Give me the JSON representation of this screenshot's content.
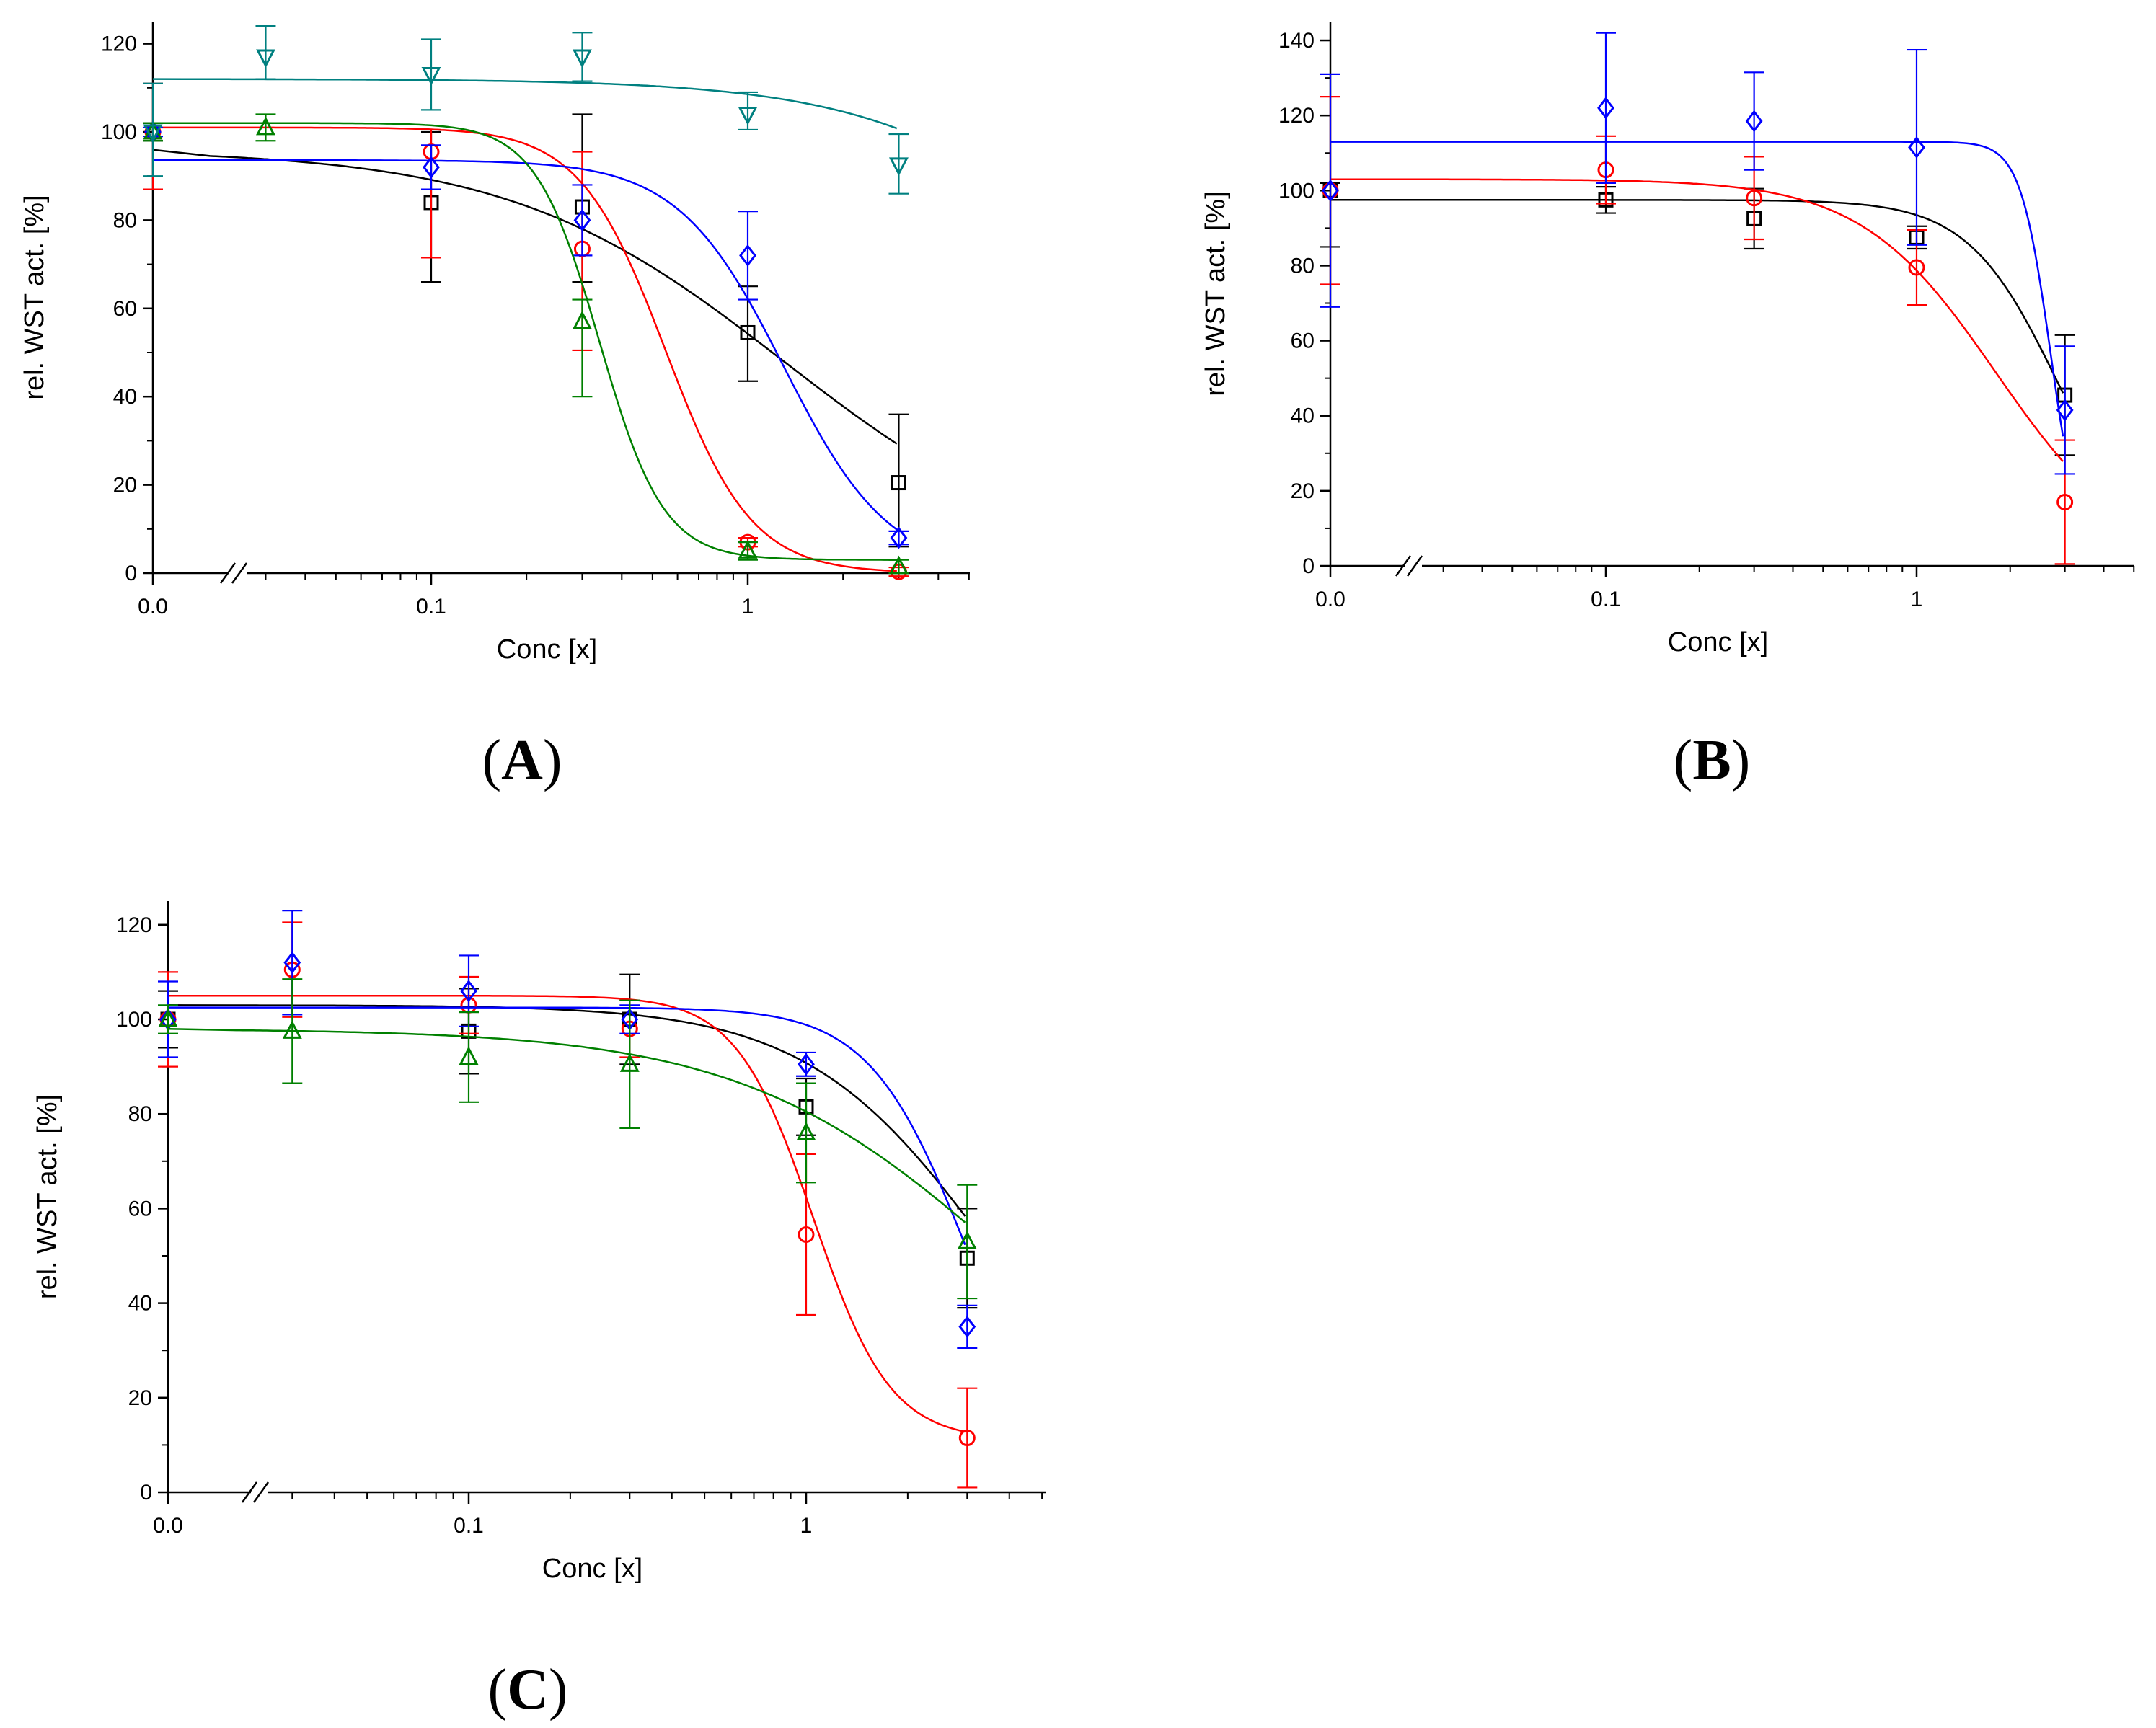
{
  "figure": {
    "panel_labels": [
      {
        "open": "(",
        "letter": "A",
        "close": ")"
      },
      {
        "open": "(",
        "letter": "B",
        "close": ")"
      },
      {
        "open": "(",
        "letter": "C",
        "close": ")"
      }
    ]
  },
  "chart_data": [
    {
      "panel": "A",
      "type": "scatter",
      "xscale": "log with axis break; zero control plotted at 0.0",
      "xlabel": "Conc [x]",
      "ylabel": "rel. WST act. [%]",
      "xlim": [
        0.012,
        5
      ],
      "ylim": [
        0,
        125
      ],
      "xtick_labels": [
        "0.0",
        "0.1",
        "1"
      ],
      "yticks": [
        0,
        20,
        40,
        60,
        80,
        100,
        120
      ],
      "series": [
        {
          "name": "black-square",
          "color": "#000000",
          "marker": "square",
          "x": [
            0.0,
            0.1,
            0.3,
            1.0,
            3.0
          ],
          "values": [
            100,
            84,
            83,
            54.5,
            20.5
          ],
          "err_hi": [
            2,
            16,
            21,
            10.5,
            15.5
          ],
          "err_lo": [
            2,
            18,
            17,
            11,
            14.5
          ],
          "fit": {
            "top": 96,
            "bottom": 0,
            "ec50": 1.3,
            "hill": 1.0
          }
        },
        {
          "name": "red-circle",
          "color": "#ff0000",
          "marker": "circle",
          "x": [
            0.0,
            0.1,
            0.3,
            1.0,
            3.0
          ],
          "values": [
            100,
            95.5,
            73.5,
            7,
            0.3
          ],
          "err_hi": [
            11,
            5,
            22,
            1,
            1
          ],
          "err_lo": [
            13,
            24,
            23,
            1,
            1
          ],
          "fit": {
            "top": 101,
            "bottom": 0,
            "ec50": 0.55,
            "hill": 3.2
          }
        },
        {
          "name": "blue-diamond",
          "color": "#0000ff",
          "marker": "diamond",
          "x": [
            0.0,
            0.1,
            0.3,
            1.0,
            3.0
          ],
          "values": [
            100,
            92,
            80,
            72,
            8
          ],
          "err_hi": [
            1,
            5,
            8,
            10,
            1.5
          ],
          "err_lo": [
            1,
            5,
            8,
            10,
            1.5
          ],
          "fit": {
            "top": 93.6,
            "bottom": 0,
            "ec50": 1.3,
            "hill": 2.6
          }
        },
        {
          "name": "green-triangle-up",
          "color": "#008000",
          "marker": "triangle-up",
          "x": [
            0.0,
            0.03,
            0.3,
            1.0,
            3.0
          ],
          "values": [
            100,
            101,
            57,
            5,
            1.5
          ],
          "err_hi": [
            2,
            3,
            5,
            2,
            1.5
          ],
          "err_lo": [
            2,
            3,
            17,
            2,
            1.5
          ],
          "fit": {
            "top": 102,
            "bottom": 3,
            "ec50": 0.34,
            "hill": 4.3
          }
        },
        {
          "name": "teal-triangle-down",
          "color": "#008080",
          "marker": "triangle-down",
          "x": [
            0.0,
            0.03,
            0.1,
            0.3,
            1.0,
            3.0
          ],
          "values": [
            100,
            117,
            113,
            117,
            104,
            92.5
          ],
          "err_hi": [
            11,
            7,
            8,
            5.5,
            5,
            7
          ],
          "err_lo": [
            10,
            5,
            8,
            5.5,
            3.5,
            6.5
          ],
          "fit": {
            "top": 112,
            "bottom": 0,
            "ec50": 20,
            "hill": 1.15
          }
        }
      ]
    },
    {
      "panel": "B",
      "type": "scatter",
      "xscale": "log with axis break; zero control plotted at 0.0",
      "xlabel": "Conc [x]",
      "ylabel": "rel. WST act. [%]",
      "xlim": [
        0.012,
        5
      ],
      "ylim": [
        0,
        145
      ],
      "xtick_labels": [
        "0.0",
        "0.1",
        "1"
      ],
      "yticks": [
        0,
        20,
        40,
        60,
        80,
        100,
        120,
        140
      ],
      "series": [
        {
          "name": "black-square",
          "color": "#000000",
          "marker": "square",
          "x": [
            0.0,
            0.1,
            0.3,
            1.0,
            3.0
          ],
          "values": [
            100,
            97.5,
            92.5,
            87.5,
            45.5
          ],
          "err_hi": [
            2,
            3.5,
            8,
            3,
            16
          ],
          "err_lo": [
            15,
            3.5,
            8,
            3,
            16
          ],
          "fit": {
            "top": 97.5,
            "bottom": 0,
            "ec50": 2.85,
            "hill": 3.0
          }
        },
        {
          "name": "red-circle",
          "color": "#ff0000",
          "marker": "circle",
          "x": [
            0.0,
            0.1,
            0.3,
            1.0,
            3.0
          ],
          "values": [
            100,
            105.5,
            98,
            79.5,
            17
          ],
          "err_hi": [
            25,
            9,
            11,
            10,
            16.5
          ],
          "err_lo": [
            25,
            9,
            11,
            10,
            16.5
          ],
          "fit": {
            "top": 103,
            "bottom": 0,
            "ec50": 1.8,
            "hill": 2.0
          }
        },
        {
          "name": "blue-diamond",
          "color": "#0000ff",
          "marker": "diamond",
          "x": [
            0.0,
            0.1,
            0.3,
            1.0,
            3.0
          ],
          "values": [
            100,
            122,
            118.5,
            111.5,
            41.5
          ],
          "err_hi": [
            31,
            20,
            13,
            26,
            17
          ],
          "err_lo": [
            31,
            20,
            13,
            26,
            17
          ],
          "fit": {
            "top": 113,
            "bottom": 0,
            "ec50": 2.7,
            "hill": 9.0
          }
        }
      ]
    },
    {
      "panel": "C",
      "type": "scatter",
      "xscale": "log with axis break; zero control plotted at 0.0",
      "xlabel": "Conc [x]",
      "ylabel": "rel. WST act. [%]",
      "xlim": [
        0.012,
        5
      ],
      "ylim": [
        0,
        125
      ],
      "xtick_labels": [
        "0.0",
        "0.1",
        "1"
      ],
      "yticks": [
        0,
        20,
        40,
        60,
        80,
        100,
        120
      ],
      "series": [
        {
          "name": "black-square",
          "color": "#000000",
          "marker": "square",
          "x": [
            0.0,
            0.1,
            0.3,
            1.0,
            3.0
          ],
          "values": [
            100,
            97.5,
            100,
            81.5,
            49.5
          ],
          "err_hi": [
            6,
            9,
            9.5,
            6,
            10.5
          ],
          "err_lo": [
            6,
            9,
            9.5,
            6,
            10.5
          ],
          "fit": {
            "top": 103,
            "bottom": 0,
            "ec50": 3.5,
            "hill": 1.6
          }
        },
        {
          "name": "red-circle",
          "color": "#ff0000",
          "marker": "circle",
          "x": [
            0.0,
            0.03,
            0.1,
            0.3,
            1.0,
            3.0
          ],
          "values": [
            100,
            110.5,
            103,
            98,
            54.5,
            11.5
          ],
          "err_hi": [
            10,
            10,
            6,
            6,
            17,
            10.5
          ],
          "err_lo": [
            10,
            10,
            6,
            6,
            17,
            10.5
          ],
          "fit": {
            "top": 105,
            "bottom": 11,
            "ec50": 1.05,
            "hill": 3.8
          }
        },
        {
          "name": "blue-diamond",
          "color": "#0000ff",
          "marker": "diamond",
          "x": [
            0.0,
            0.03,
            0.1,
            0.3,
            1.0,
            3.0
          ],
          "values": [
            100,
            112,
            106,
            100,
            90.5,
            35
          ],
          "err_hi": [
            8,
            11,
            7.5,
            3,
            2.5,
            4.5
          ],
          "err_lo": [
            8,
            11,
            7.5,
            3,
            2.5,
            4.5
          ],
          "fit": {
            "top": 102.5,
            "bottom": 0,
            "ec50": 3.0,
            "hill": 3.0
          }
        },
        {
          "name": "green-triangle-up",
          "color": "#008000",
          "marker": "triangle-up",
          "x": [
            0.0,
            0.03,
            0.1,
            0.3,
            1.0,
            3.0
          ],
          "values": [
            100,
            97.5,
            92,
            90.5,
            76,
            53
          ],
          "err_hi": [
            3,
            11,
            9.5,
            13.5,
            10.5,
            12
          ],
          "err_lo": [
            3,
            11,
            9.5,
            13.5,
            10.5,
            12
          ],
          "fit": {
            "top": 98,
            "bottom": 0,
            "ec50": 4.0,
            "hill": 1.1
          }
        }
      ]
    }
  ]
}
